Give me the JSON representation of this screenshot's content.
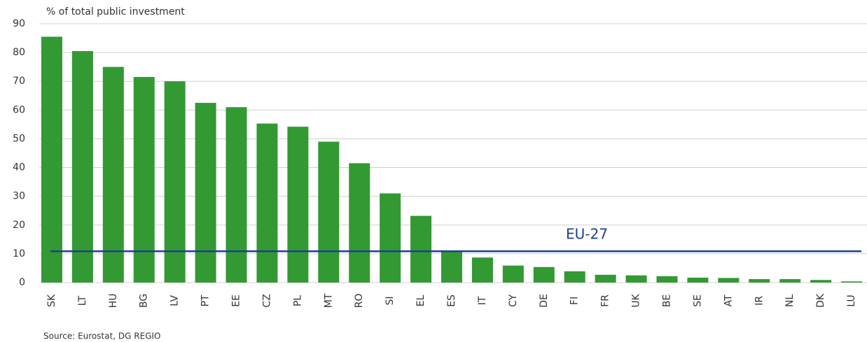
{
  "chart_data": {
    "type": "bar",
    "y_axis_label": "% of total public investment",
    "source": "Source: Eurostat, DG REGIO",
    "categories": [
      "SK",
      "LT",
      "HU",
      "BG",
      "LV",
      "PT",
      "EE",
      "CZ",
      "PL",
      "MT",
      "RO",
      "SI",
      "EL",
      "ES",
      "IT",
      "CY",
      "DE",
      "FI",
      "FR",
      "UK",
      "BE",
      "SE",
      "AT",
      "IR",
      "NL",
      "DK",
      "LU"
    ],
    "values": [
      85.5,
      80.5,
      75,
      71.5,
      70,
      62.5,
      61,
      55.3,
      54.2,
      49,
      41.5,
      31,
      23.2,
      11,
      8.7,
      5.9,
      5.4,
      3.9,
      2.7,
      2.5,
      2.2,
      1.7,
      1.6,
      1.2,
      1.2,
      0.9,
      0.4
    ],
    "color": "#339933",
    "ylim": [
      0,
      90
    ],
    "yticks": [
      0,
      10,
      20,
      30,
      40,
      50,
      60,
      70,
      80,
      90
    ],
    "grid": true,
    "reference_line": {
      "label": "EU-27",
      "value": 10.9,
      "color": "#1f3f8f"
    }
  }
}
